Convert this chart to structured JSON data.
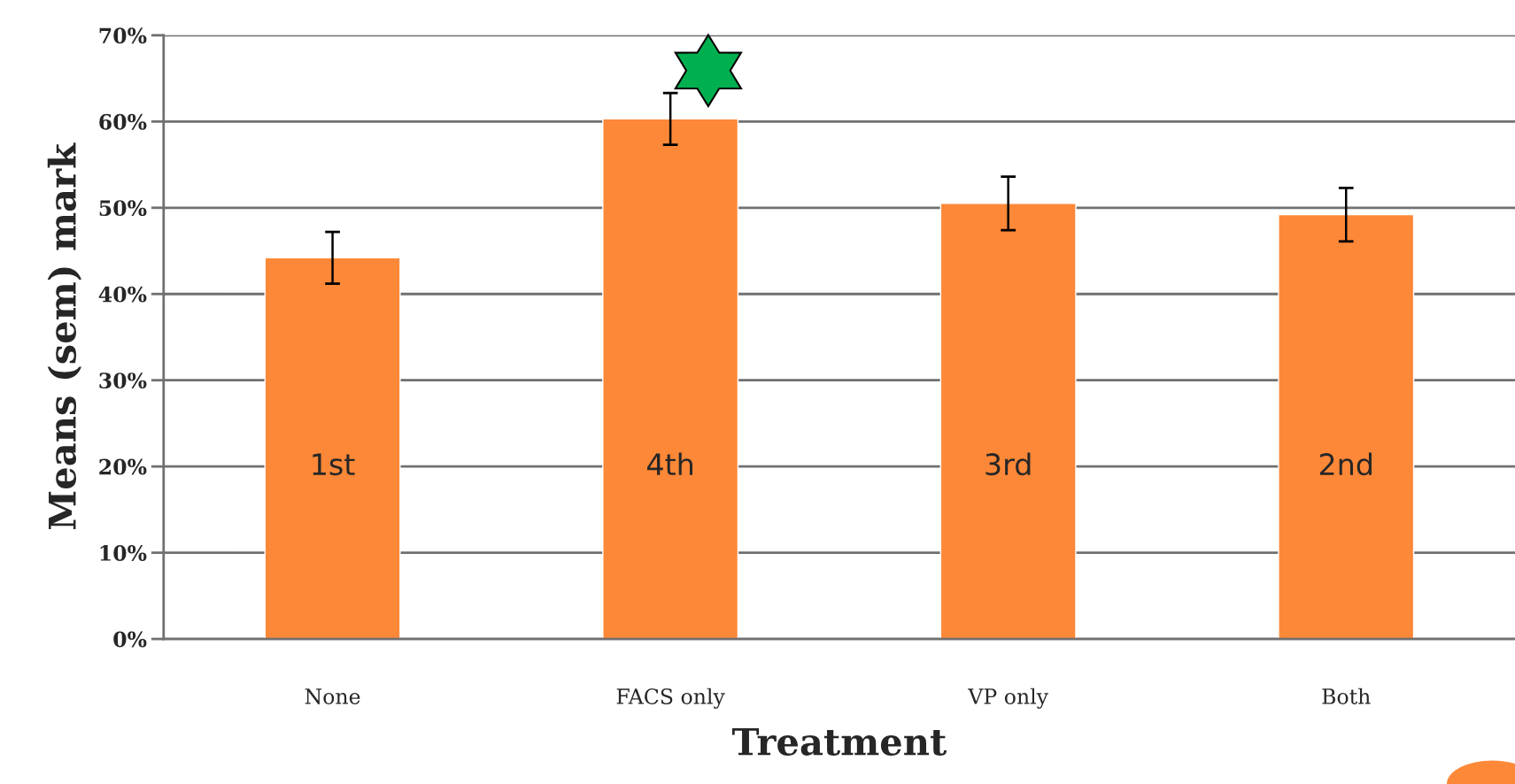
{
  "chart_data": {
    "type": "bar",
    "xlabel": "Treatment",
    "ylabel": "Means (sem) mark",
    "categories": [
      "None",
      "FACS only",
      "VP only",
      "Both"
    ],
    "values": [
      44.2,
      60.3,
      50.5,
      49.2
    ],
    "errors": [
      3,
      3,
      3.1,
      3.1
    ],
    "color": "#fd8838",
    "ylim": [
      0,
      70
    ],
    "yticks": [
      {
        "value": 0,
        "label": "0%"
      },
      {
        "value": 10,
        "label": "10%"
      },
      {
        "value": 20,
        "label": "20%"
      },
      {
        "value": 30,
        "label": "30%"
      },
      {
        "value": 40,
        "label": "40%"
      },
      {
        "value": 50,
        "label": "50%"
      },
      {
        "value": 60,
        "label": "60%"
      },
      {
        "value": 70,
        "label": "70%"
      }
    ],
    "grid": "y",
    "annotations": [
      "1st",
      "4th",
      "3rd",
      "2nd"
    ]
  }
}
